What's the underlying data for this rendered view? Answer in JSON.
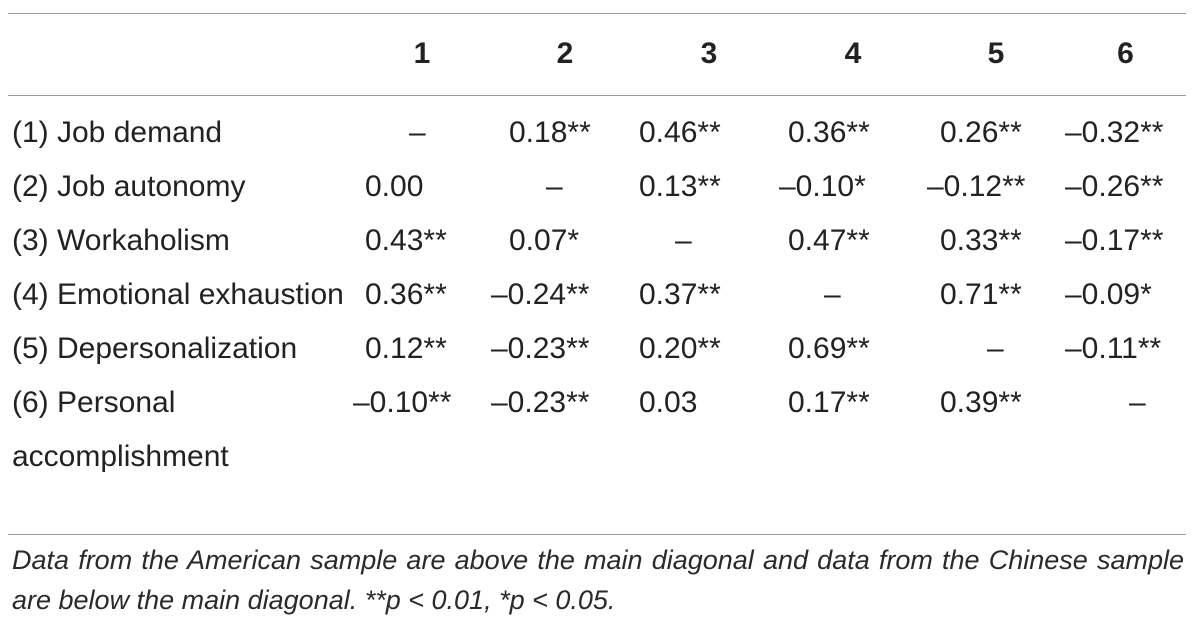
{
  "table": {
    "columns": [
      "",
      "1",
      "2",
      "3",
      "4",
      "5",
      "6"
    ],
    "rows": [
      {
        "label": "(1) Job demand",
        "cells": [
          "–",
          "0.18**",
          "0.46**",
          "0.36**",
          "0.26**",
          "–0.32**"
        ]
      },
      {
        "label": "(2) Job autonomy",
        "cells": [
          "0.00",
          "–",
          "0.13**",
          "–0.10*",
          "–0.12**",
          "–0.26**"
        ]
      },
      {
        "label": "(3) Workaholism",
        "cells": [
          "0.43**",
          "0.07*",
          "–",
          "0.47**",
          "0.33**",
          "–0.17**"
        ]
      },
      {
        "label": "(4) Emotional exhaustion",
        "cells": [
          "0.36**",
          "–0.24**",
          "0.37**",
          "–",
          "0.71**",
          "–0.09*"
        ]
      },
      {
        "label": "(5) Depersonalization",
        "cells": [
          "0.12**",
          "–0.23**",
          "0.20**",
          "0.69**",
          "–",
          "–0.11**"
        ]
      },
      {
        "label": "(6) Personal accomplishment",
        "cells": [
          "–0.10**",
          "–0.23**",
          "0.03",
          "0.17**",
          "0.39**",
          "–"
        ]
      }
    ]
  },
  "note": "Data from the American sample are above the main diagonal and data from the Chinese sample are below the main diagonal. **p < 0.01, *p < 0.05."
}
